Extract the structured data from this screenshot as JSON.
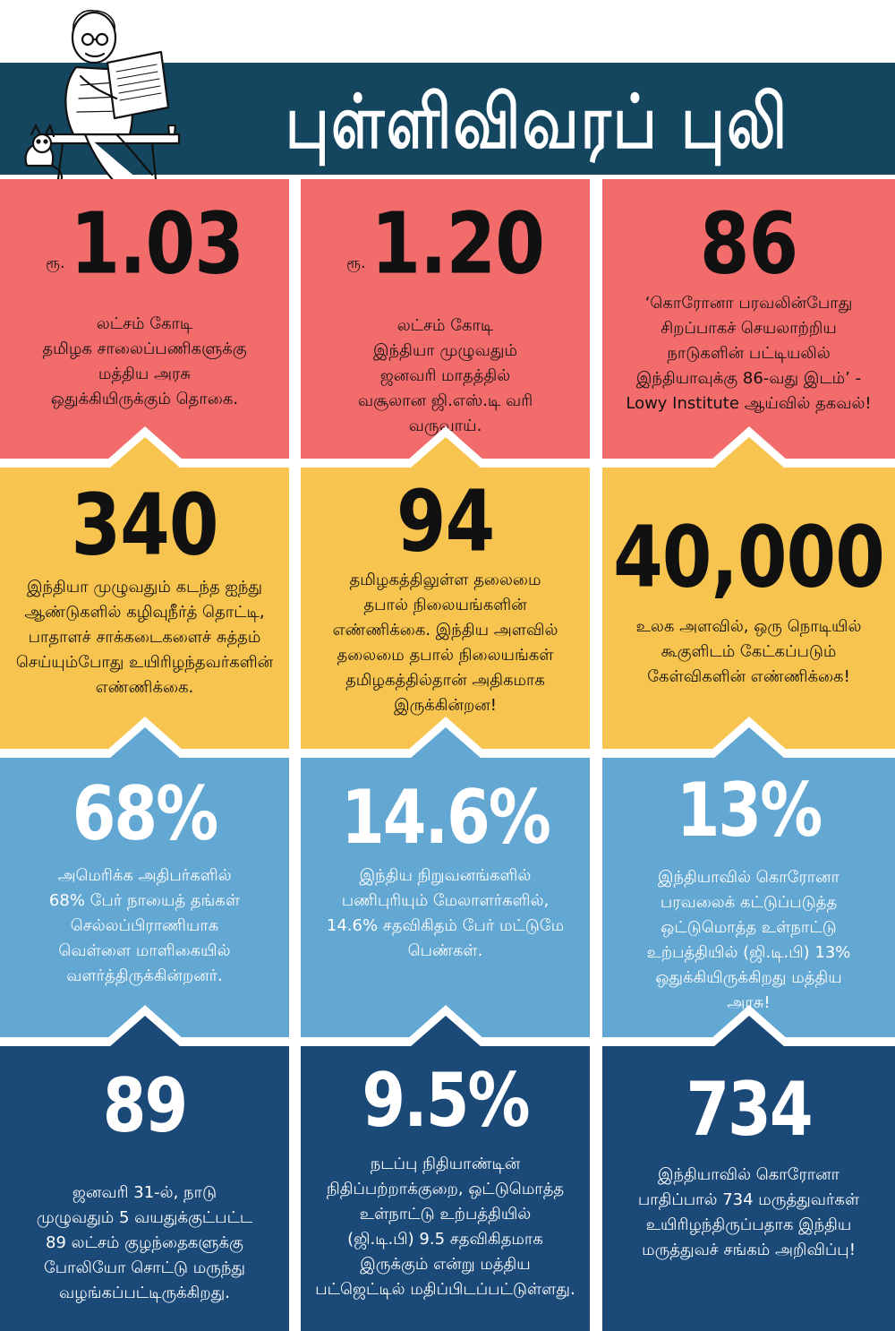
{
  "header": {
    "title": "புள்ளிவிவரப் புலி",
    "banner_color": "#15465f"
  },
  "colors": {
    "row1": "#f36c6c",
    "row2": "#f7c44f",
    "row3": "#63a7d3",
    "row4": "#1c4a78"
  },
  "cards": [
    {
      "prefix": "ரூ.",
      "number": "1.03",
      "desc": "லட்சம் கோடி\nதமிழக சாலைப்பணிகளுக்கு\nமத்திய அரசு\nஒதுக்கியிருக்கும் தொகை."
    },
    {
      "prefix": "ரூ.",
      "number": "1.20",
      "desc": "லட்சம் கோடி\nஇந்தியா முழுவதும்\nஜனவரி மாதத்தில்\nவசூலான ஜி.எஸ்.டி வரி\nவருவாய்."
    },
    {
      "prefix": "",
      "number": "86",
      "desc": "‘கொரோனா பரவலின்போது\nசிறப்பாகச் செயலாற்றிய\nநாடுகளின் பட்டியலில்\nஇந்தியாவுக்கு 86-வது இடம்’ -\nLowy Institute ஆய்வில் தகவல்!"
    },
    {
      "prefix": "",
      "number": "340",
      "desc": "இந்தியா முழுவதும் கடந்த ஐந்து\nஆண்டுகளில் கழிவுநீர்த் தொட்டி,\nபாதாளச் சாக்கடைகளைச் சுத்தம்\nசெய்யும்போது உயிரிழந்தவர்களின்\nஎண்ணிக்கை."
    },
    {
      "prefix": "",
      "number": "94",
      "desc": "தமிழகத்திலுள்ள தலைமை\nதபால் நிலையங்களின்\nஎண்ணிக்கை. இந்திய அளவில்\nதலைமை தபால் நிலையங்கள்\nதமிழகத்தில்தான் அதிகமாக\nஇருக்கின்றன!"
    },
    {
      "prefix": "",
      "number": "40,000",
      "desc": "உலக அளவில், ஒரு நொடியில்\nகூகுளிடம் கேட்கப்படும்\nகேள்விகளின் எண்ணிக்கை!"
    },
    {
      "prefix": "",
      "number": "68%",
      "desc": "அமெரிக்க அதிபர்களில்\n68% பேர் நாயைத் தங்கள்\nசெல்லப்பிராணியாக\nவெள்ளை மாளிகையில்\nவளர்த்திருக்கின்றனர்."
    },
    {
      "prefix": "",
      "number": "14.6%",
      "desc": "இந்திய நிறுவனங்களில்\nபணிபுரியும் மேலாளர்களில்,\n14.6% சதவிகிதம் பேர் மட்டுமே\nபெண்கள்."
    },
    {
      "prefix": "",
      "number": "13%",
      "desc": "இந்தியாவில் கொரோனா\nபரவலைக் கட்டுப்படுத்த\nஒட்டுமொத்த உள்நாட்டு\nஉற்பத்தியில் (ஜி.டி.பி) 13%\nஒதுக்கியிருக்கிறது மத்திய\nஅரசு!"
    },
    {
      "prefix": "",
      "number": "89",
      "desc": "ஜனவரி 31-ல், நாடு\nமுழுவதும் 5 வயதுக்குட்பட்ட\n89 லட்சம் குழந்தைகளுக்கு\nபோலியோ சொட்டு மருந்து\nவழங்கப்பட்டிருக்கிறது."
    },
    {
      "prefix": "",
      "number": "9.5%",
      "desc": "நடப்பு நிதியாண்டின்\nநிதிப்பற்றாக்குறை, ஒட்டுமொத்த\nஉள்நாட்டு உற்பத்தியில்\n(ஜி.டி.பி) 9.5 சதவிகிதமாக\nஇருக்கும் என்று மத்திய\nபட்ஜெட்டில் மதிப்பிடப்பட்டுள்ளது."
    },
    {
      "prefix": "",
      "number": "734",
      "desc": "இந்தியாவில் கொரோனா\nபாதிப்பால் 734 மருத்துவர்கள்\nஉயிரிழந்திருப்பதாக இந்திய\nமருத்துவச் சங்கம் அறிவிப்பு!"
    }
  ]
}
